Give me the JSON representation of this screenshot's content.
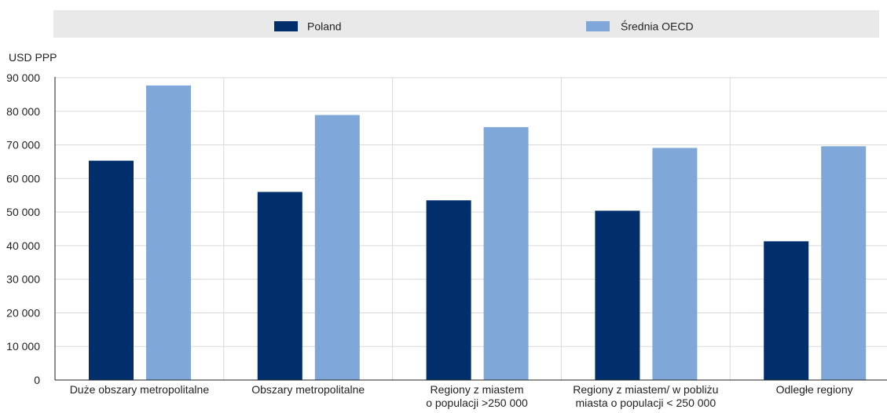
{
  "chart_data": {
    "type": "bar",
    "ylabel": "USD PPP",
    "ylim": [
      0,
      90000
    ],
    "yticks": [
      0,
      10000,
      20000,
      30000,
      40000,
      50000,
      60000,
      70000,
      80000,
      90000
    ],
    "ytick_labels": [
      "0",
      "10 000",
      "20 000",
      "30 000",
      "40 000",
      "50 000",
      "60 000",
      "70 000",
      "80 000",
      "90 000"
    ],
    "grid": true,
    "legend_position": "top",
    "categories": [
      [
        "Duże obszary metropolitalne"
      ],
      [
        "Obszary metropolitalne"
      ],
      [
        "Regiony z miastem",
        "o populacji >250 000"
      ],
      [
        "Regiony z miastem/ w pobliżu",
        "miasta o populacji < 250 000"
      ],
      [
        "Odległe regiony"
      ]
    ],
    "series": [
      {
        "name": "Poland",
        "color": "#002f6c",
        "values": [
          65300,
          56000,
          53500,
          50400,
          41300
        ]
      },
      {
        "name": "Średnia OECD",
        "color": "#7fa8d9",
        "values": [
          87700,
          78900,
          75300,
          69100,
          69600
        ]
      }
    ]
  }
}
